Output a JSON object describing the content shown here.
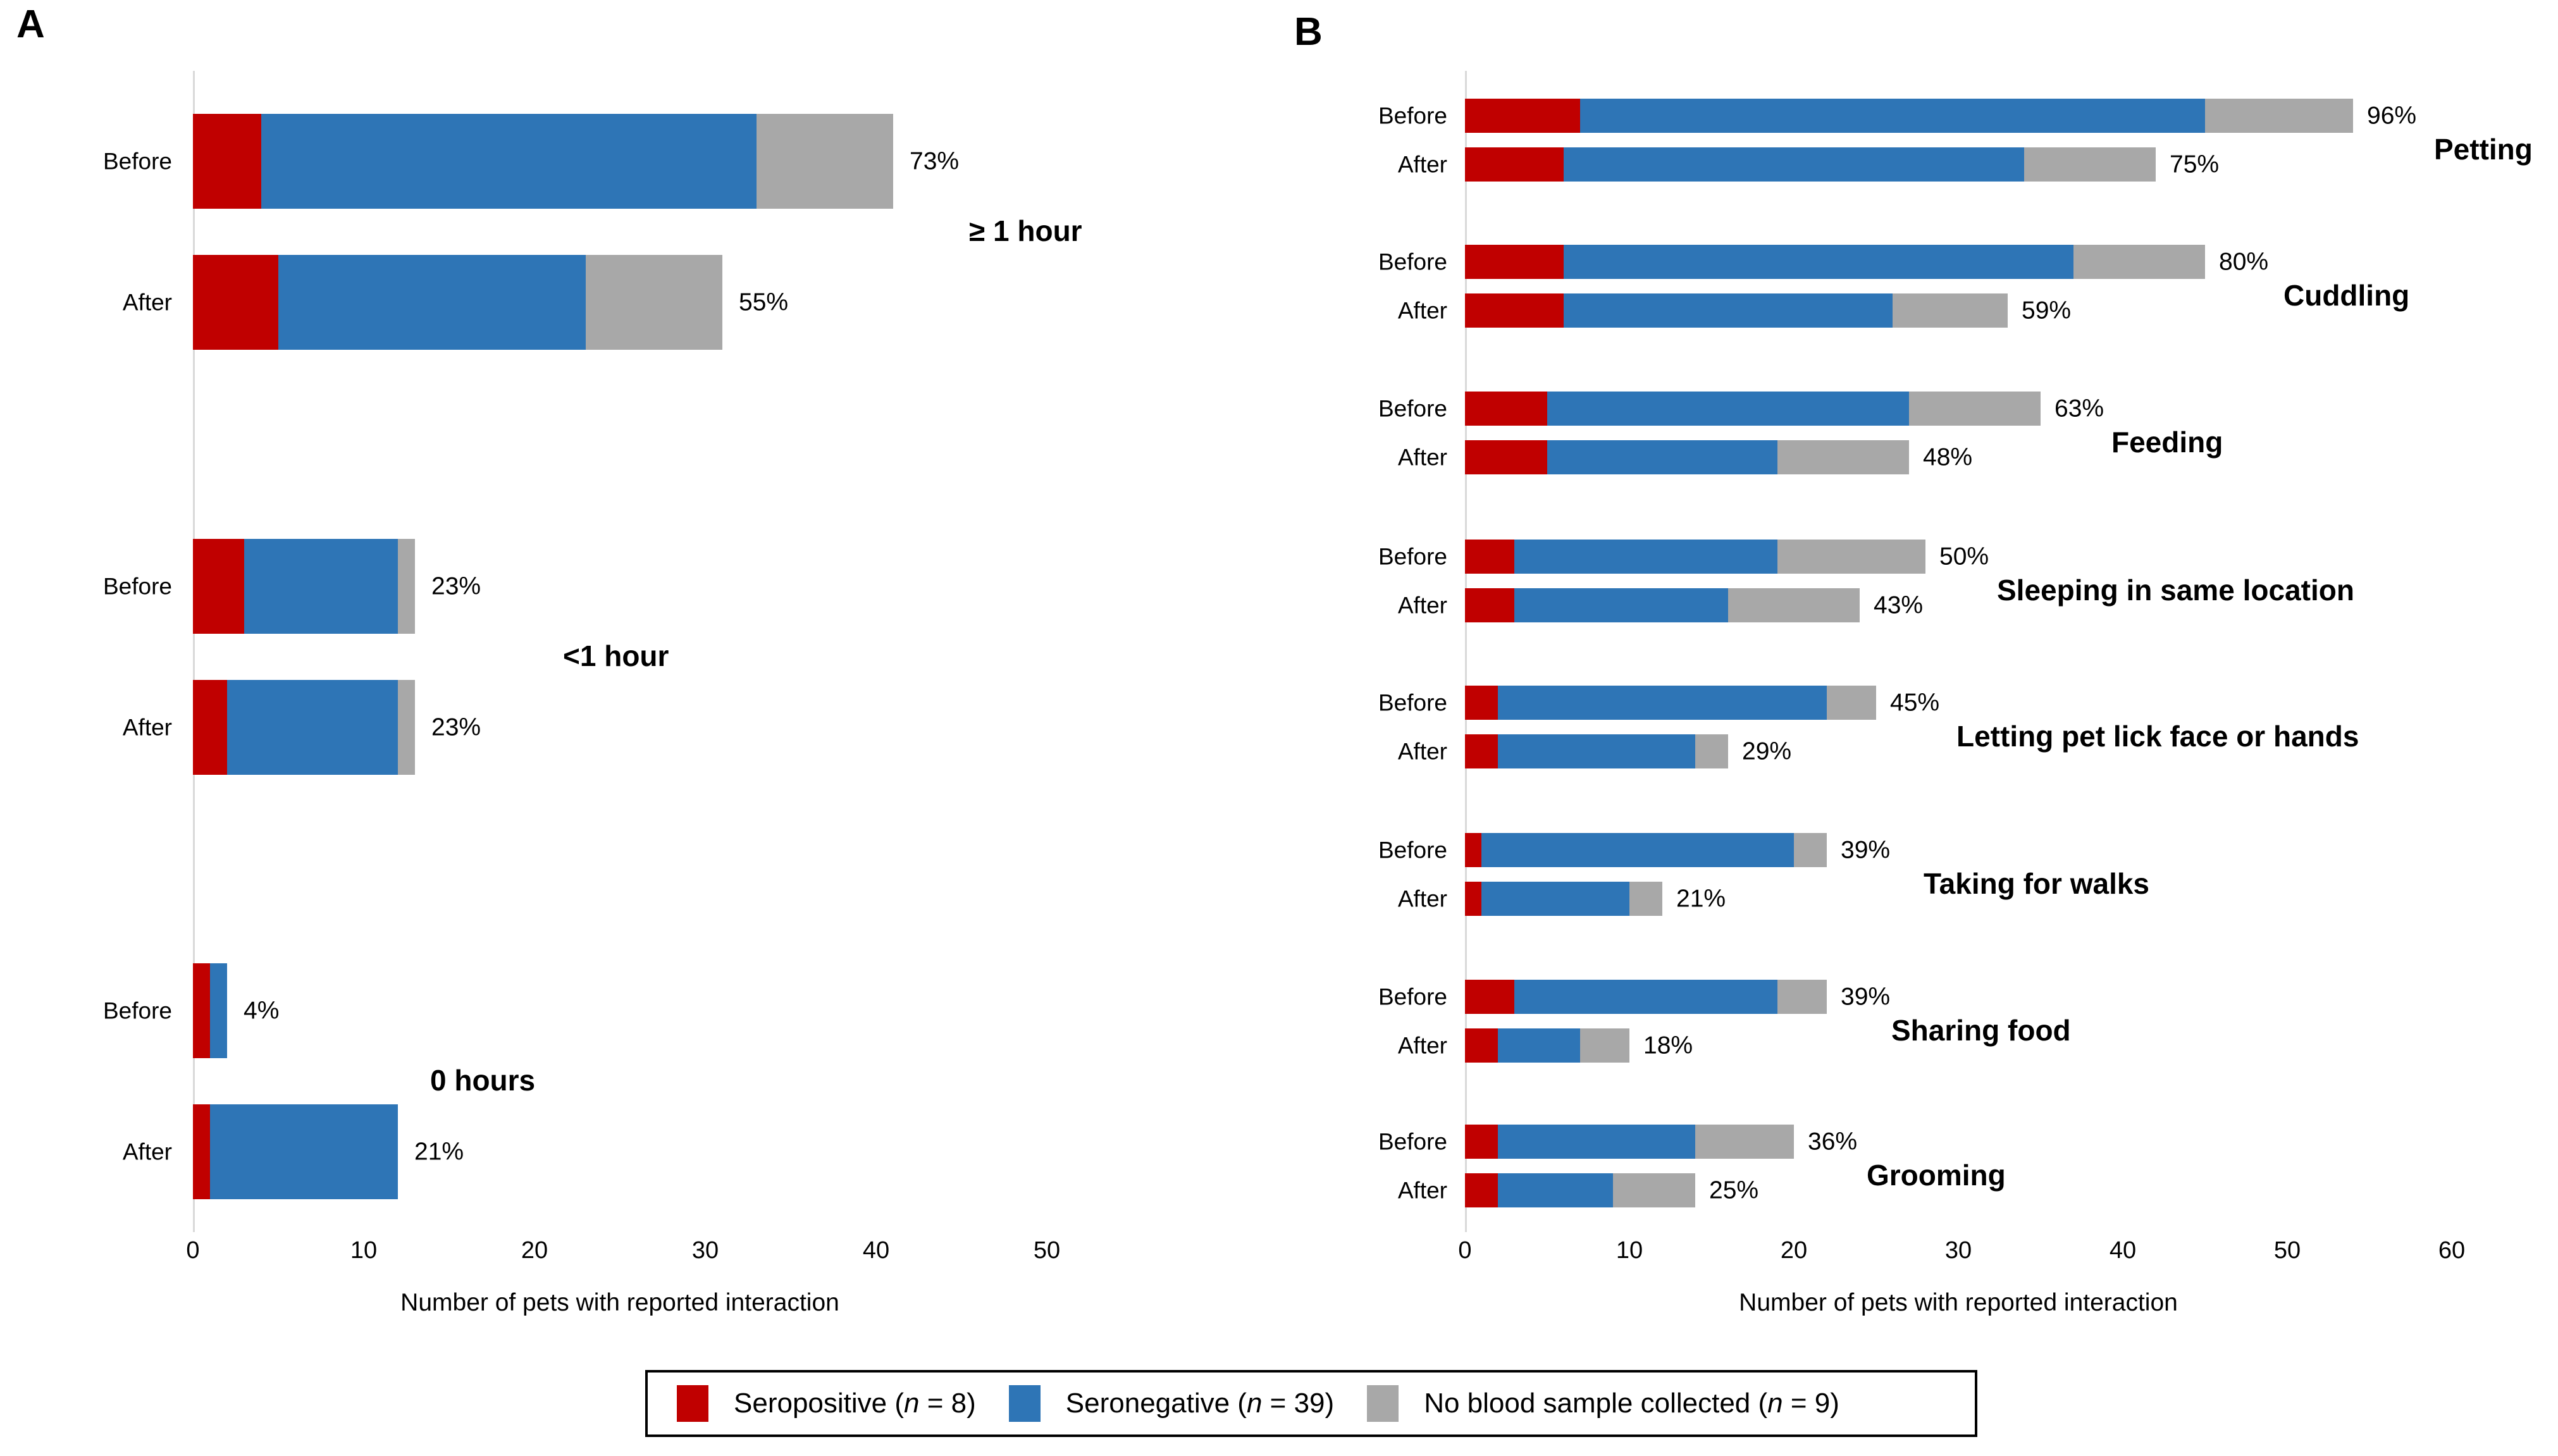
{
  "colors": {
    "seropositive": "#C00000",
    "seronegative": "#2E75B6",
    "no_blood_sample": "#A8A8A8",
    "axis_line": "#D9D9D9",
    "text": "#000000"
  },
  "legend": {
    "items": [
      {
        "series": "seropositive",
        "before": "Seropositive (",
        "n": "n",
        "after": " = 8)"
      },
      {
        "series": "seronegative",
        "before": "Seronegative (",
        "n": "n",
        "after": " = 39)"
      },
      {
        "series": "no_blood_sample",
        "before": "No blood sample collected (",
        "n": "n",
        "after": " = 9)"
      }
    ]
  },
  "chart_data": [
    {
      "panel_letter": "A",
      "type": "bar",
      "stacked": true,
      "orientation": "horizontal",
      "xlabel": "Number of pets with reported interaction",
      "xlim": [
        0,
        50
      ],
      "xticks": [
        0,
        10,
        20,
        30,
        40,
        50
      ],
      "series": [
        "Seropositive",
        "Seronegative",
        "No blood sample collected"
      ],
      "legend_position": "bottom",
      "grid": false,
      "groups": [
        {
          "label": "≥ 1 hour",
          "bars": [
            {
              "label": "Before",
              "values": [
                4,
                29,
                8
              ],
              "total": 41,
              "percent": "73%"
            },
            {
              "label": "After",
              "values": [
                5,
                18,
                8
              ],
              "total": 31,
              "percent": "55%"
            }
          ]
        },
        {
          "label": "<1 hour",
          "bars": [
            {
              "label": "Before",
              "values": [
                3,
                9,
                1
              ],
              "total": 13,
              "percent": "23%"
            },
            {
              "label": "After",
              "values": [
                2,
                10,
                1
              ],
              "total": 13,
              "percent": "23%"
            }
          ]
        },
        {
          "label": "0 hours",
          "bars": [
            {
              "label": "Before",
              "values": [
                1,
                1,
                0
              ],
              "total": 2,
              "percent": "4%"
            },
            {
              "label": "After",
              "values": [
                1,
                11,
                0
              ],
              "total": 12,
              "percent": "21%"
            }
          ]
        }
      ]
    },
    {
      "panel_letter": "B",
      "type": "bar",
      "stacked": true,
      "orientation": "horizontal",
      "xlabel": "Number of pets with reported interaction",
      "xlim": [
        0,
        60
      ],
      "xticks": [
        0,
        10,
        20,
        30,
        40,
        50,
        60
      ],
      "series": [
        "Seropositive",
        "Seronegative",
        "No blood sample collected"
      ],
      "legend_position": "bottom",
      "grid": false,
      "groups": [
        {
          "label": "Petting",
          "bars": [
            {
              "label": "Before",
              "values": [
                7,
                38,
                9
              ],
              "total": 54,
              "percent": "96%"
            },
            {
              "label": "After",
              "values": [
                6,
                28,
                8
              ],
              "total": 42,
              "percent": "75%"
            }
          ]
        },
        {
          "label": "Cuddling",
          "bars": [
            {
              "label": "Before",
              "values": [
                6,
                31,
                8
              ],
              "total": 45,
              "percent": "80%"
            },
            {
              "label": "After",
              "values": [
                6,
                20,
                7
              ],
              "total": 33,
              "percent": "59%"
            }
          ]
        },
        {
          "label": "Feeding",
          "bars": [
            {
              "label": "Before",
              "values": [
                5,
                22,
                8
              ],
              "total": 35,
              "percent": "63%"
            },
            {
              "label": "After",
              "values": [
                5,
                14,
                8
              ],
              "total": 27,
              "percent": "48%"
            }
          ]
        },
        {
          "label": "Sleeping in same location",
          "bars": [
            {
              "label": "Before",
              "values": [
                3,
                16,
                9
              ],
              "total": 28,
              "percent": "50%"
            },
            {
              "label": "After",
              "values": [
                3,
                13,
                8
              ],
              "total": 24,
              "percent": "43%"
            }
          ]
        },
        {
          "label": "Letting pet lick face or hands",
          "bars": [
            {
              "label": "Before",
              "values": [
                2,
                20,
                3
              ],
              "total": 25,
              "percent": "45%"
            },
            {
              "label": "After",
              "values": [
                2,
                12,
                2
              ],
              "total": 16,
              "percent": "29%"
            }
          ]
        },
        {
          "label": "Taking for walks",
          "bars": [
            {
              "label": "Before",
              "values": [
                1,
                19,
                2
              ],
              "total": 22,
              "percent": "39%"
            },
            {
              "label": "After",
              "values": [
                1,
                9,
                2
              ],
              "total": 12,
              "percent": "21%"
            }
          ]
        },
        {
          "label": "Sharing food",
          "bars": [
            {
              "label": "Before",
              "values": [
                3,
                16,
                3
              ],
              "total": 22,
              "percent": "39%"
            },
            {
              "label": "After",
              "values": [
                2,
                5,
                3
              ],
              "total": 10,
              "percent": "18%"
            }
          ]
        },
        {
          "label": "Grooming",
          "bars": [
            {
              "label": "Before",
              "values": [
                2,
                12,
                6
              ],
              "total": 20,
              "percent": "36%"
            },
            {
              "label": "After",
              "values": [
                2,
                7,
                5
              ],
              "total": 14,
              "percent": "25%"
            }
          ]
        }
      ]
    }
  ]
}
